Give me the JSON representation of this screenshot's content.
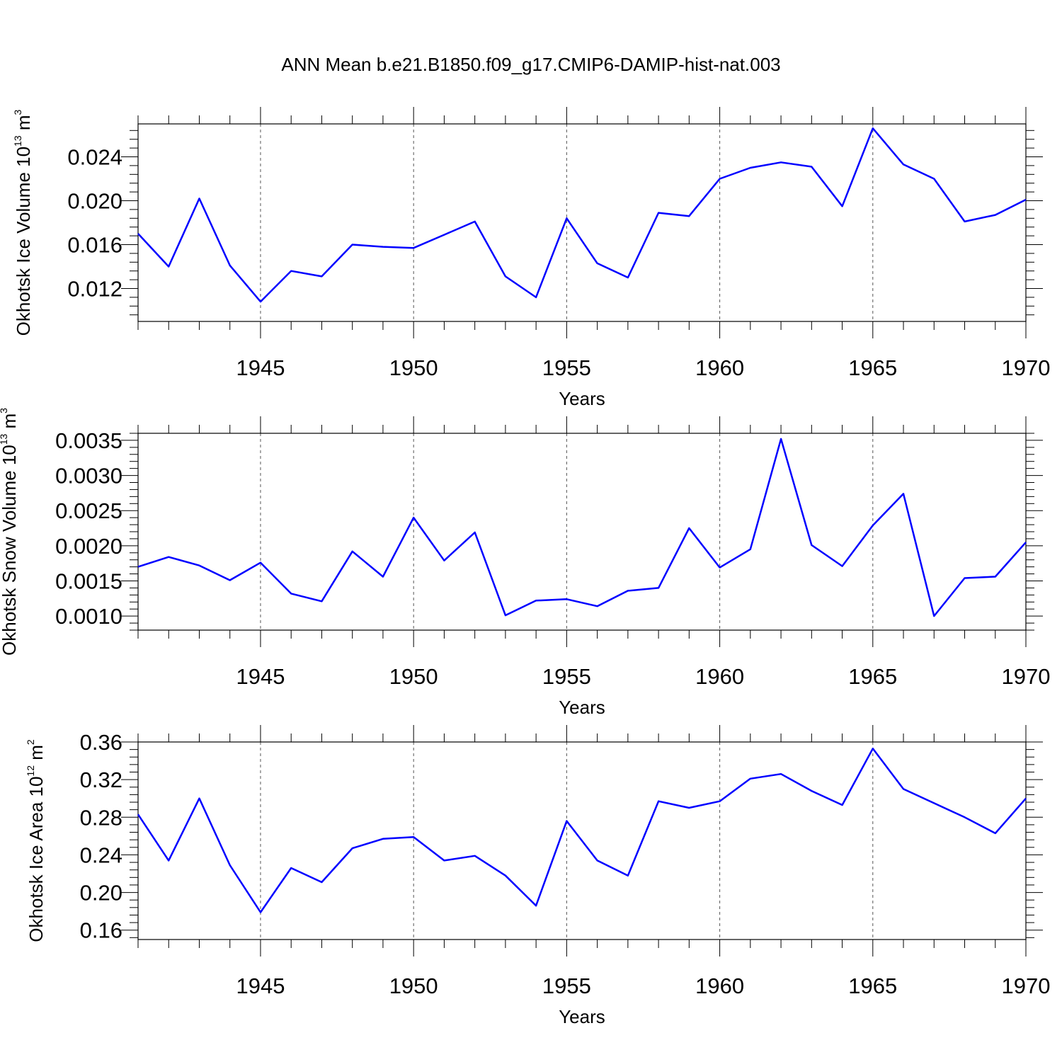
{
  "title": "ANN Mean b.e21.B1850.f09_g17.CMIP6-DAMIP-hist-nat.003",
  "colors": {
    "series": "#0000ff",
    "grid": "#555555"
  },
  "chart_data": [
    {
      "type": "line",
      "ylabel_main": "Okhotsk Ice Volume 10",
      "ylabel_exp": "13",
      "ylabel_unit": " m",
      "ylabel_unit_exp": "3",
      "xlabel": "Years",
      "xlim": [
        1941,
        1970
      ],
      "ylim": [
        0.009,
        0.027
      ],
      "yticks": [
        "0.012",
        "0.016",
        "0.020",
        "0.024"
      ],
      "xticks": [
        "1945",
        "1950",
        "1955",
        "1960",
        "1965",
        "1970"
      ],
      "grid": "vertical dashed at major x ticks",
      "x": [
        1941,
        1942,
        1943,
        1944,
        1945,
        1946,
        1947,
        1948,
        1949,
        1950,
        1951,
        1952,
        1953,
        1954,
        1955,
        1956,
        1957,
        1958,
        1959,
        1960,
        1961,
        1962,
        1963,
        1964,
        1965,
        1966,
        1967,
        1968,
        1969,
        1970
      ],
      "values": [
        0.017,
        0.014,
        0.0202,
        0.0141,
        0.0108,
        0.0136,
        0.0131,
        0.016,
        0.0158,
        0.0157,
        0.0169,
        0.0181,
        0.0131,
        0.0112,
        0.0184,
        0.0143,
        0.013,
        0.0189,
        0.0186,
        0.022,
        0.023,
        0.0235,
        0.0231,
        0.0195,
        0.0266,
        0.0233,
        0.022,
        0.0181,
        0.0187,
        0.0201
      ]
    },
    {
      "type": "line",
      "ylabel_main": "Okhotsk Snow Volume 10",
      "ylabel_exp": "13",
      "ylabel_unit": " m",
      "ylabel_unit_exp": "3",
      "xlabel": "Years",
      "xlim": [
        1941,
        1970
      ],
      "ylim": [
        0.0008,
        0.0036
      ],
      "yticks": [
        "0.0010",
        "0.0015",
        "0.0020",
        "0.0025",
        "0.0030",
        "0.0035"
      ],
      "xticks": [
        "1945",
        "1950",
        "1955",
        "1960",
        "1965",
        "1970"
      ],
      "grid": "vertical dashed at major x ticks",
      "x": [
        1941,
        1942,
        1943,
        1944,
        1945,
        1946,
        1947,
        1948,
        1949,
        1950,
        1951,
        1952,
        1953,
        1954,
        1955,
        1956,
        1957,
        1958,
        1959,
        1960,
        1961,
        1962,
        1963,
        1964,
        1965,
        1966,
        1967,
        1968,
        1969,
        1970
      ],
      "values": [
        0.0017,
        0.00184,
        0.00172,
        0.00151,
        0.00176,
        0.00132,
        0.00121,
        0.00192,
        0.00156,
        0.0024,
        0.00179,
        0.00219,
        0.00101,
        0.00122,
        0.00124,
        0.00114,
        0.00136,
        0.0014,
        0.00225,
        0.00169,
        0.00195,
        0.00352,
        0.00201,
        0.00171,
        0.00229,
        0.00274,
        0.001,
        0.00154,
        0.00156,
        0.00205
      ]
    },
    {
      "type": "line",
      "ylabel_main": "Okhotsk Ice Area 10",
      "ylabel_exp": "12",
      "ylabel_unit": " m",
      "ylabel_unit_exp": "2",
      "xlabel": "Years",
      "xlim": [
        1941,
        1970
      ],
      "ylim": [
        0.15,
        0.36
      ],
      "yticks": [
        "0.16",
        "0.20",
        "0.24",
        "0.28",
        "0.32",
        "0.36"
      ],
      "xticks": [
        "1945",
        "1950",
        "1955",
        "1960",
        "1965",
        "1970"
      ],
      "grid": "vertical dashed at major x ticks",
      "x": [
        1941,
        1942,
        1943,
        1944,
        1945,
        1946,
        1947,
        1948,
        1949,
        1950,
        1951,
        1952,
        1953,
        1954,
        1955,
        1956,
        1957,
        1958,
        1959,
        1960,
        1961,
        1962,
        1963,
        1964,
        1965,
        1966,
        1967,
        1968,
        1969,
        1970
      ],
      "values": [
        0.283,
        0.234,
        0.3,
        0.229,
        0.179,
        0.226,
        0.211,
        0.247,
        0.257,
        0.259,
        0.234,
        0.239,
        0.218,
        0.186,
        0.276,
        0.234,
        0.218,
        0.297,
        0.29,
        0.297,
        0.321,
        0.326,
        0.308,
        0.293,
        0.353,
        0.31,
        0.295,
        0.28,
        0.263,
        0.3
      ]
    }
  ]
}
